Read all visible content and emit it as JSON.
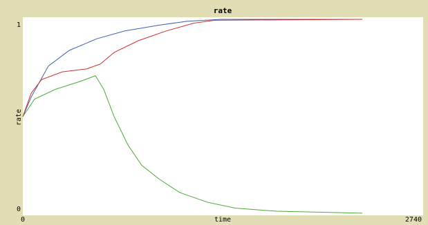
{
  "chart_data": {
    "type": "line",
    "title": "rate",
    "xlabel": "time",
    "ylabel": "rate",
    "xlim": [
      0,
      2740
    ],
    "ylim": [
      0,
      1
    ],
    "xticks": [
      0,
      2740
    ],
    "yticks": [
      0,
      1
    ],
    "series": [
      {
        "color": "#3a5fb0",
        "x": [
          0,
          57,
          175,
          317,
          506,
          696,
          932,
          1122,
          1358,
          2324
        ],
        "values": [
          0.5,
          0.6,
          0.76,
          0.84,
          0.9,
          0.94,
          0.97,
          0.99,
          1.0,
          1.0
        ]
      },
      {
        "color": "#d03030",
        "x": [
          0,
          57,
          128,
          270,
          435,
          530,
          625,
          790,
          980,
          1169,
          1311,
          2324
        ],
        "values": [
          0.5,
          0.62,
          0.69,
          0.73,
          0.745,
          0.77,
          0.83,
          0.89,
          0.94,
          0.98,
          0.995,
          1.0
        ]
      },
      {
        "color": "#4ca83a",
        "x": [
          0,
          80,
          222,
          388,
          497,
          554,
          625,
          719,
          814,
          932,
          1074,
          1264,
          1453,
          1737,
          2324
        ],
        "values": [
          0.5,
          0.59,
          0.64,
          0.68,
          0.71,
          0.64,
          0.5,
          0.355,
          0.25,
          0.18,
          0.11,
          0.06,
          0.03,
          0.014,
          0.004
        ]
      }
    ]
  }
}
